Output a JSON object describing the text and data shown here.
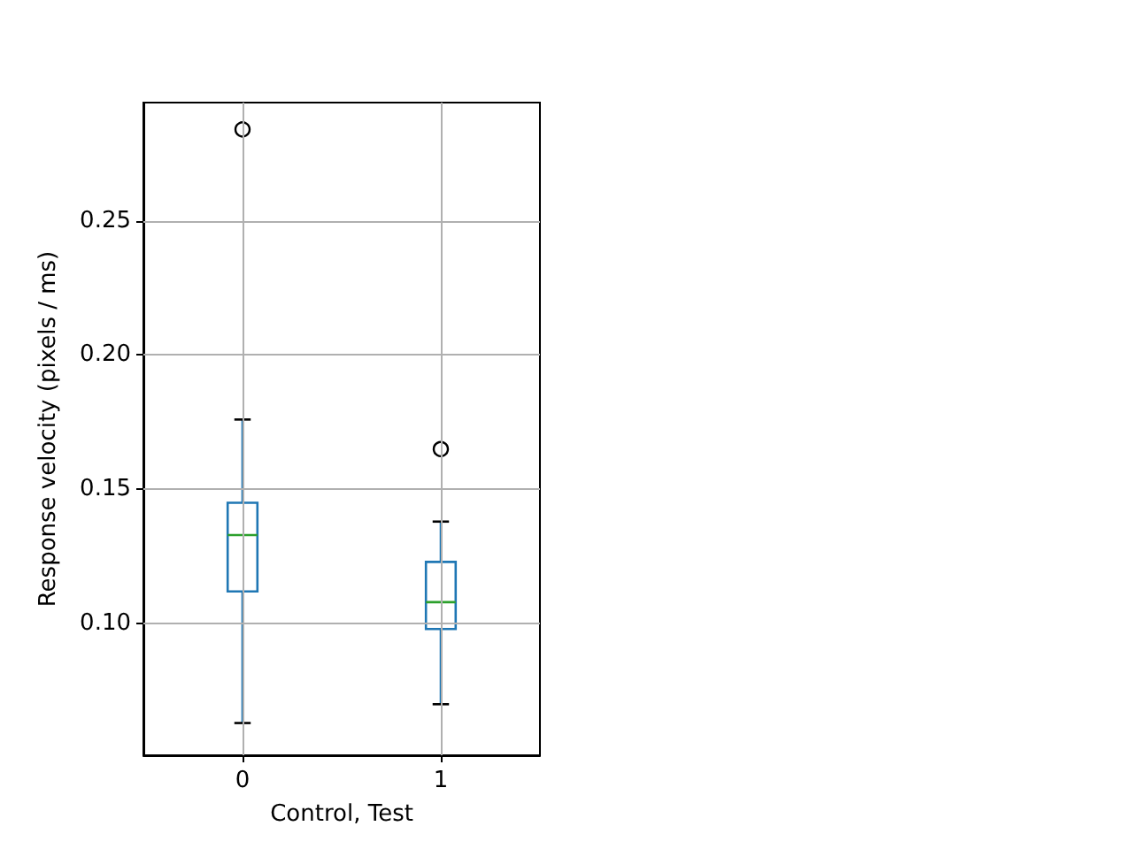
{
  "chart_data": {
    "type": "box",
    "xlabel": "Control, Test",
    "ylabel": "Response velocity (pixels / ms)",
    "categories": [
      "0",
      "1"
    ],
    "series": [
      {
        "color": "#1f77b4",
        "boxes": [
          {
            "low": 0.063,
            "q1": 0.112,
            "median": 0.133,
            "q3": 0.145,
            "high": 0.176,
            "outliers": [
              0.284
            ]
          },
          {
            "low": 0.07,
            "q1": 0.098,
            "median": 0.108,
            "q3": 0.123,
            "high": 0.138,
            "outliers": [
              0.165
            ]
          }
        ]
      }
    ],
    "ylim": [
      0.051,
      0.294
    ],
    "yticks": [
      {
        "value": 0.1,
        "label": "0.10"
      },
      {
        "value": 0.15,
        "label": "0.15"
      },
      {
        "value": 0.2,
        "label": "0.20"
      },
      {
        "value": 0.25,
        "label": "0.25"
      }
    ],
    "grid": true
  }
}
